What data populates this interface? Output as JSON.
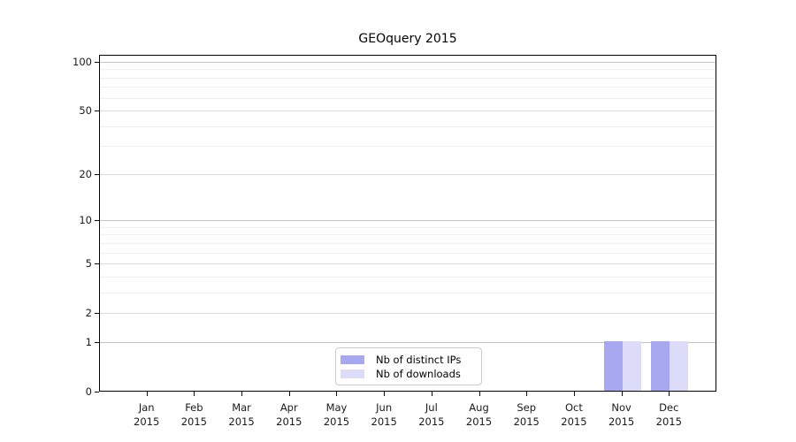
{
  "title": "GEOquery 2015",
  "chart_data": {
    "type": "bar",
    "title": "GEOquery 2015",
    "xlabel": "",
    "ylabel": "",
    "categories": [
      "Jan",
      "Feb",
      "Mar",
      "Apr",
      "May",
      "Jun",
      "Jul",
      "Aug",
      "Sep",
      "Oct",
      "Nov",
      "Dec"
    ],
    "year_label": "2015",
    "series": [
      {
        "name": "Nb of distinct IPs",
        "color": "#a8a8f0",
        "values": [
          0,
          0,
          0,
          0,
          0,
          0,
          0,
          0,
          0,
          0,
          1,
          1
        ]
      },
      {
        "name": "Nb of downloads",
        "color": "#dcdcf8",
        "values": [
          0,
          0,
          0,
          0,
          0,
          0,
          0,
          0,
          0,
          0,
          1,
          1
        ]
      }
    ],
    "y_scale": "log1p",
    "ylim": [
      0,
      110
    ],
    "y_ticks": [
      0,
      1,
      2,
      5,
      10,
      20,
      50,
      100
    ],
    "y_gridlines_major": [
      1,
      10,
      100
    ],
    "y_gridlines_mid": [
      2,
      5,
      20,
      50
    ],
    "y_gridlines_minor": [
      3,
      4,
      6,
      7,
      8,
      9,
      30,
      40,
      60,
      70,
      80,
      90
    ],
    "grid": true,
    "legend_position": "bottom-center"
  },
  "legend": {
    "items": [
      {
        "label": "Nb of distinct IPs"
      },
      {
        "label": "Nb of downloads"
      }
    ]
  },
  "colors": {
    "grid_major": "#c2c2c2",
    "grid_mid": "#dbdbdb",
    "grid_minor": "#efefef",
    "spine": "#000000",
    "bar_dark": "#a8a8f0",
    "bar_light": "#dcdcf8"
  }
}
